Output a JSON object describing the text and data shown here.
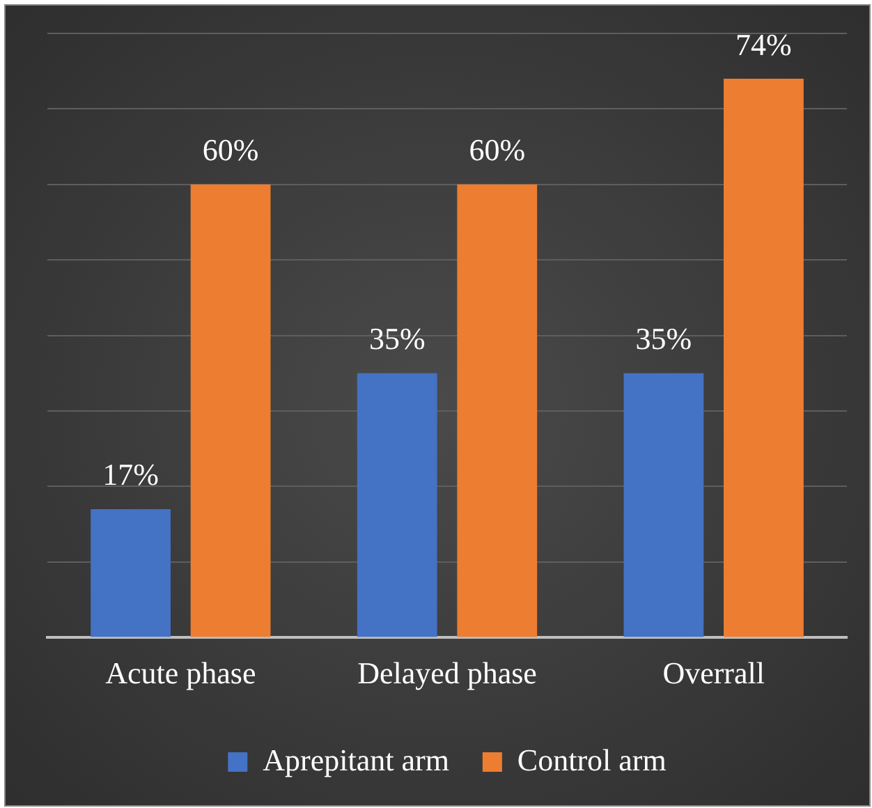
{
  "chart_data": {
    "type": "bar",
    "categories": [
      "Acute phase",
      "Delayed phase",
      "Overrall"
    ],
    "series": [
      {
        "name": "Aprepitant arm",
        "color": "#4472c4",
        "values": [
          17,
          35,
          35
        ],
        "value_labels": [
          "17%",
          "35%",
          "35%"
        ]
      },
      {
        "name": "Control arm",
        "color": "#ed7d31",
        "values": [
          60,
          60,
          74
        ],
        "value_labels": [
          "60%",
          "60%",
          "74%"
        ]
      }
    ],
    "grid": "y",
    "legend": "bottom",
    "tick_labels": "x"
  }
}
